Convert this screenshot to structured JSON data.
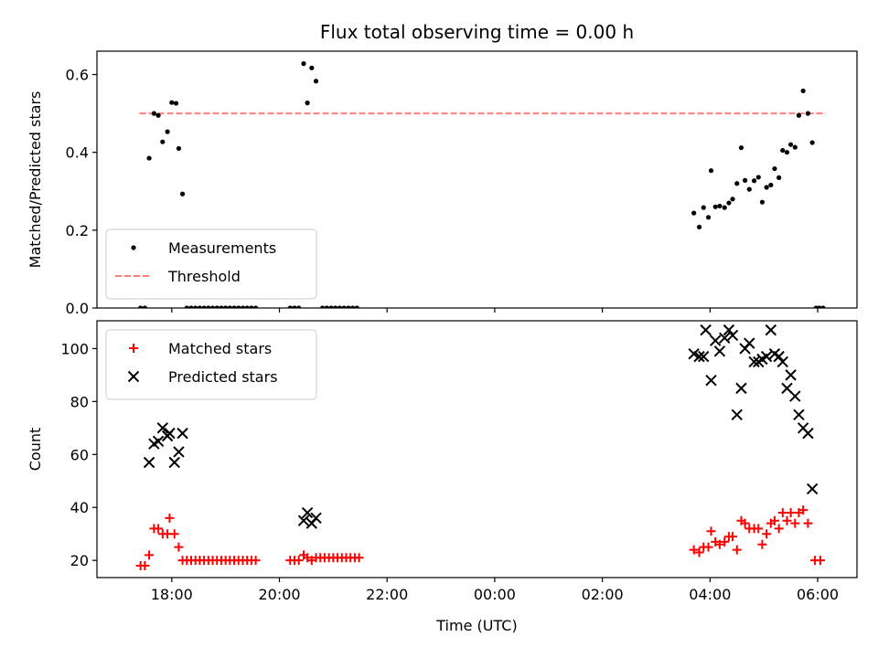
{
  "chart_data": {
    "title": "Flux total observing time = 0.00 h",
    "xlabel": "Time (UTC)",
    "x_tick_labels": [
      "18:00",
      "20:00",
      "22:00",
      "00:00",
      "02:00",
      "04:00",
      "06:00"
    ],
    "x_tick_hours": [
      18,
      20,
      22,
      24,
      26,
      28,
      30
    ],
    "xlim_hours": [
      16.61,
      30.73
    ],
    "panels": [
      {
        "type": "scatter",
        "ylabel": "Matched/Predicted stars",
        "ylim": [
          0,
          0.66
        ],
        "y_ticks": [
          0.0,
          0.2,
          0.4,
          0.6
        ],
        "y_tick_labels": [
          "0.0",
          "0.2",
          "0.4",
          "0.6"
        ],
        "legend_position": "lower-left",
        "series": [
          {
            "name": "Measurements",
            "marker": "dot",
            "color": "#000000",
            "points": [
              [
                17.42,
                0.0
              ],
              [
                17.5,
                0.0
              ],
              [
                17.58,
                0.385
              ],
              [
                17.67,
                0.5
              ],
              [
                17.75,
                0.495
              ],
              [
                17.83,
                0.427
              ],
              [
                17.92,
                0.453
              ],
              [
                18.0,
                0.528
              ],
              [
                18.08,
                0.526
              ],
              [
                18.13,
                0.41
              ],
              [
                18.2,
                0.293
              ],
              [
                18.28,
                0.0
              ],
              [
                18.36,
                0.0
              ],
              [
                18.44,
                0.0
              ],
              [
                18.52,
                0.0
              ],
              [
                18.6,
                0.0
              ],
              [
                18.68,
                0.0
              ],
              [
                18.76,
                0.0
              ],
              [
                18.84,
                0.0
              ],
              [
                18.92,
                0.0
              ],
              [
                19.0,
                0.0
              ],
              [
                19.08,
                0.0
              ],
              [
                19.16,
                0.0
              ],
              [
                19.24,
                0.0
              ],
              [
                19.32,
                0.0
              ],
              [
                19.4,
                0.0
              ],
              [
                19.48,
                0.0
              ],
              [
                19.56,
                0.0
              ],
              [
                20.2,
                0.0
              ],
              [
                20.28,
                0.0
              ],
              [
                20.36,
                0.0
              ],
              [
                20.45,
                0.628
              ],
              [
                20.52,
                0.527
              ],
              [
                20.6,
                0.617
              ],
              [
                20.68,
                0.583
              ],
              [
                20.8,
                0.0
              ],
              [
                20.88,
                0.0
              ],
              [
                20.96,
                0.0
              ],
              [
                21.04,
                0.0
              ],
              [
                21.12,
                0.0
              ],
              [
                21.2,
                0.0
              ],
              [
                21.28,
                0.0
              ],
              [
                21.36,
                0.0
              ],
              [
                21.44,
                0.0
              ],
              [
                27.7,
                0.244
              ],
              [
                27.8,
                0.208
              ],
              [
                27.88,
                0.258
              ],
              [
                27.97,
                0.233
              ],
              [
                28.02,
                0.353
              ],
              [
                28.1,
                0.26
              ],
              [
                28.18,
                0.262
              ],
              [
                28.27,
                0.258
              ],
              [
                28.35,
                0.27
              ],
              [
                28.42,
                0.28
              ],
              [
                28.5,
                0.32
              ],
              [
                28.58,
                0.412
              ],
              [
                28.65,
                0.328
              ],
              [
                28.73,
                0.305
              ],
              [
                28.82,
                0.327
              ],
              [
                28.9,
                0.336
              ],
              [
                28.97,
                0.272
              ],
              [
                29.05,
                0.31
              ],
              [
                29.13,
                0.316
              ],
              [
                29.2,
                0.358
              ],
              [
                29.28,
                0.335
              ],
              [
                29.35,
                0.405
              ],
              [
                29.43,
                0.4
              ],
              [
                29.5,
                0.42
              ],
              [
                29.58,
                0.413
              ],
              [
                29.65,
                0.495
              ],
              [
                29.73,
                0.558
              ],
              [
                29.82,
                0.5
              ],
              [
                29.9,
                0.425
              ],
              [
                29.97,
                0.0
              ],
              [
                30.03,
                0.0
              ],
              [
                30.1,
                0.0
              ]
            ]
          }
        ],
        "reference_lines": [
          {
            "name": "Threshold",
            "y": 0.5,
            "x_range": [
              17.4,
              30.15
            ],
            "color": "#ff7f7f",
            "style": "dashed"
          }
        ]
      },
      {
        "type": "scatter",
        "ylabel": "Count",
        "ylim": [
          13.5,
          110.5
        ],
        "y_ticks": [
          20,
          40,
          60,
          80,
          100
        ],
        "y_tick_labels": [
          "20",
          "40",
          "60",
          "80",
          "100"
        ],
        "legend_position": "upper-left",
        "series": [
          {
            "name": "Matched stars",
            "marker": "plus",
            "color": "#ff0000",
            "points": [
              [
                17.42,
                18
              ],
              [
                17.5,
                18
              ],
              [
                17.58,
                22
              ],
              [
                17.67,
                32
              ],
              [
                17.75,
                32
              ],
              [
                17.83,
                30
              ],
              [
                17.92,
                30
              ],
              [
                17.96,
                36
              ],
              [
                18.05,
                30
              ],
              [
                18.13,
                25
              ],
              [
                18.2,
                20
              ],
              [
                18.28,
                20
              ],
              [
                18.36,
                20
              ],
              [
                18.44,
                20
              ],
              [
                18.52,
                20
              ],
              [
                18.6,
                20
              ],
              [
                18.68,
                20
              ],
              [
                18.76,
                20
              ],
              [
                18.84,
                20
              ],
              [
                18.92,
                20
              ],
              [
                19.0,
                20
              ],
              [
                19.08,
                20
              ],
              [
                19.16,
                20
              ],
              [
                19.24,
                20
              ],
              [
                19.32,
                20
              ],
              [
                19.4,
                20
              ],
              [
                19.48,
                20
              ],
              [
                19.56,
                20
              ],
              [
                20.2,
                20
              ],
              [
                20.28,
                20
              ],
              [
                20.36,
                20
              ],
              [
                20.45,
                22
              ],
              [
                20.52,
                21
              ],
              [
                20.6,
                20
              ],
              [
                20.68,
                21
              ],
              [
                20.76,
                21
              ],
              [
                20.84,
                21
              ],
              [
                20.92,
                21
              ],
              [
                21.0,
                21
              ],
              [
                21.08,
                21
              ],
              [
                21.16,
                21
              ],
              [
                21.24,
                21
              ],
              [
                21.32,
                21
              ],
              [
                21.4,
                21
              ],
              [
                21.48,
                21
              ],
              [
                27.7,
                24
              ],
              [
                27.8,
                23
              ],
              [
                27.88,
                25
              ],
              [
                27.97,
                25
              ],
              [
                28.02,
                31
              ],
              [
                28.1,
                27
              ],
              [
                28.18,
                26
              ],
              [
                28.27,
                27
              ],
              [
                28.35,
                29
              ],
              [
                28.42,
                29
              ],
              [
                28.5,
                24
              ],
              [
                28.58,
                35
              ],
              [
                28.65,
                34
              ],
              [
                28.73,
                32
              ],
              [
                28.82,
                32
              ],
              [
                28.9,
                32
              ],
              [
                28.97,
                26
              ],
              [
                29.05,
                30
              ],
              [
                29.13,
                34
              ],
              [
                29.2,
                35
              ],
              [
                29.28,
                32
              ],
              [
                29.35,
                38
              ],
              [
                29.43,
                35
              ],
              [
                29.5,
                38
              ],
              [
                29.58,
                34
              ],
              [
                29.65,
                38
              ],
              [
                29.73,
                39
              ],
              [
                29.82,
                34
              ],
              [
                29.95,
                20
              ],
              [
                30.05,
                20
              ]
            ]
          },
          {
            "name": "Predicted stars",
            "marker": "x",
            "color": "#000000",
            "points": [
              [
                17.58,
                57
              ],
              [
                17.67,
                64
              ],
              [
                17.75,
                65
              ],
              [
                17.83,
                70
              ],
              [
                17.92,
                67
              ],
              [
                17.96,
                68
              ],
              [
                18.05,
                57
              ],
              [
                18.13,
                61
              ],
              [
                18.2,
                68
              ],
              [
                20.45,
                35
              ],
              [
                20.52,
                38
              ],
              [
                20.6,
                34
              ],
              [
                20.68,
                36
              ],
              [
                27.7,
                98
              ],
              [
                27.8,
                97
              ],
              [
                27.88,
                97
              ],
              [
                27.92,
                107
              ],
              [
                28.02,
                88
              ],
              [
                28.1,
                103
              ],
              [
                28.18,
                99
              ],
              [
                28.27,
                104
              ],
              [
                28.35,
                107
              ],
              [
                28.42,
                105
              ],
              [
                28.5,
                75
              ],
              [
                28.58,
                85
              ],
              [
                28.65,
                100
              ],
              [
                28.73,
                102
              ],
              [
                28.82,
                95
              ],
              [
                28.9,
                95
              ],
              [
                28.97,
                96
              ],
              [
                29.05,
                97
              ],
              [
                29.13,
                107
              ],
              [
                29.2,
                98
              ],
              [
                29.28,
                97
              ],
              [
                29.35,
                95
              ],
              [
                29.43,
                85
              ],
              [
                29.5,
                90
              ],
              [
                29.58,
                82
              ],
              [
                29.65,
                75
              ],
              [
                29.73,
                70
              ],
              [
                29.82,
                68
              ],
              [
                29.9,
                47
              ]
            ]
          }
        ]
      }
    ]
  }
}
